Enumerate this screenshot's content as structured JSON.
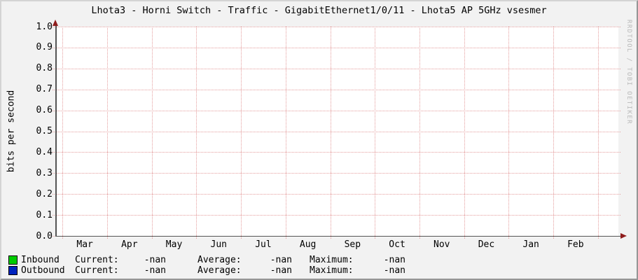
{
  "title": "Lhota3 - Horni Switch - Traffic - GigabitEthernet1/0/11 - Lhota5 AP 5GHz vsesmer",
  "watermark": "RRDTOOL / TOBI OETIKER",
  "chart_data": {
    "type": "line",
    "title": "Lhota3 - Horni Switch - Traffic - GigabitEthernet1/0/11 - Lhota5 AP 5GHz vsesmer",
    "xlabel": "",
    "ylabel": "bits per second",
    "ylim": [
      0.0,
      1.0
    ],
    "y_ticks": [
      "1.0",
      "0.9",
      "0.8",
      "0.7",
      "0.6",
      "0.5",
      "0.4",
      "0.3",
      "0.2",
      "0.1",
      "0.0"
    ],
    "x_ticks": [
      "Mar",
      "Apr",
      "May",
      "Jun",
      "Jul",
      "Aug",
      "Sep",
      "Oct",
      "Nov",
      "Dec",
      "Jan",
      "Feb"
    ],
    "grid": "on",
    "legend_position": "bottom",
    "series": [
      {
        "name": "Inbound",
        "color": "#00cc00",
        "values": []
      },
      {
        "name": "Outbound",
        "color": "#0023be",
        "values": []
      }
    ]
  },
  "colors": {
    "background": "#f2f2f2",
    "canvas": "#ffffff",
    "grid": "#e49c9c",
    "axis": "#555555",
    "arrow": "#8f1d1d",
    "inbound": "#00cc00",
    "outbound": "#0023be"
  },
  "legend": {
    "columns": [
      "Current:",
      "Average:",
      "Maximum:"
    ],
    "rows": [
      {
        "label": "Inbound",
        "color": "#00cc00",
        "values": [
          "-nan",
          "-nan",
          "-nan"
        ]
      },
      {
        "label": "Outbound",
        "color": "#0023be",
        "values": [
          "-nan",
          "-nan",
          "-nan"
        ]
      }
    ]
  }
}
